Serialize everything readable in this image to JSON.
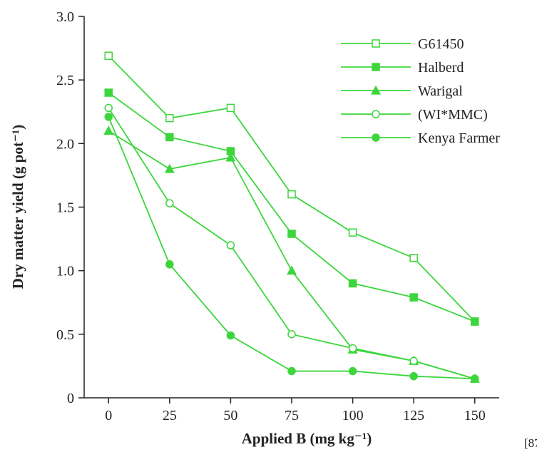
{
  "chart_data": {
    "type": "line",
    "title": "",
    "xlabel": "Applied B (mg kg⁻¹)",
    "ylabel": "Dry matter yield (g pot⁻¹)",
    "x": [
      0,
      25,
      50,
      75,
      100,
      125,
      150
    ],
    "xlim": [
      -10,
      160
    ],
    "ylim": [
      0,
      3.0
    ],
    "x_ticks": [
      "0",
      "25",
      "50",
      "75",
      "100",
      "125",
      "150"
    ],
    "y_ticks": [
      "0",
      "0.5",
      "1.0",
      "1.5",
      "2.0",
      "2.5",
      "3.0"
    ],
    "grid": false,
    "legend_position": "top-right",
    "line_color": "#3cd63c",
    "series": [
      {
        "name": "G61450",
        "marker": "square-open",
        "values": [
          2.69,
          2.2,
          2.28,
          1.6,
          1.3,
          1.1,
          0.6
        ]
      },
      {
        "name": "Halberd",
        "marker": "square-filled",
        "values": [
          2.4,
          2.05,
          1.94,
          1.29,
          0.9,
          0.79,
          0.6
        ]
      },
      {
        "name": "Warigal",
        "marker": "triangle-filled",
        "values": [
          2.1,
          1.8,
          1.89,
          1.0,
          0.38,
          0.29,
          0.15
        ]
      },
      {
        "name": "(WI*MMC)",
        "marker": "circle-open",
        "values": [
          2.28,
          1.53,
          1.2,
          0.5,
          0.39,
          0.29,
          0.15
        ]
      },
      {
        "name": "Kenya Farmer",
        "marker": "circle-filled",
        "values": [
          2.21,
          1.05,
          0.49,
          0.21,
          0.21,
          0.17,
          0.15
        ]
      }
    ]
  },
  "reference_mark": "[87"
}
